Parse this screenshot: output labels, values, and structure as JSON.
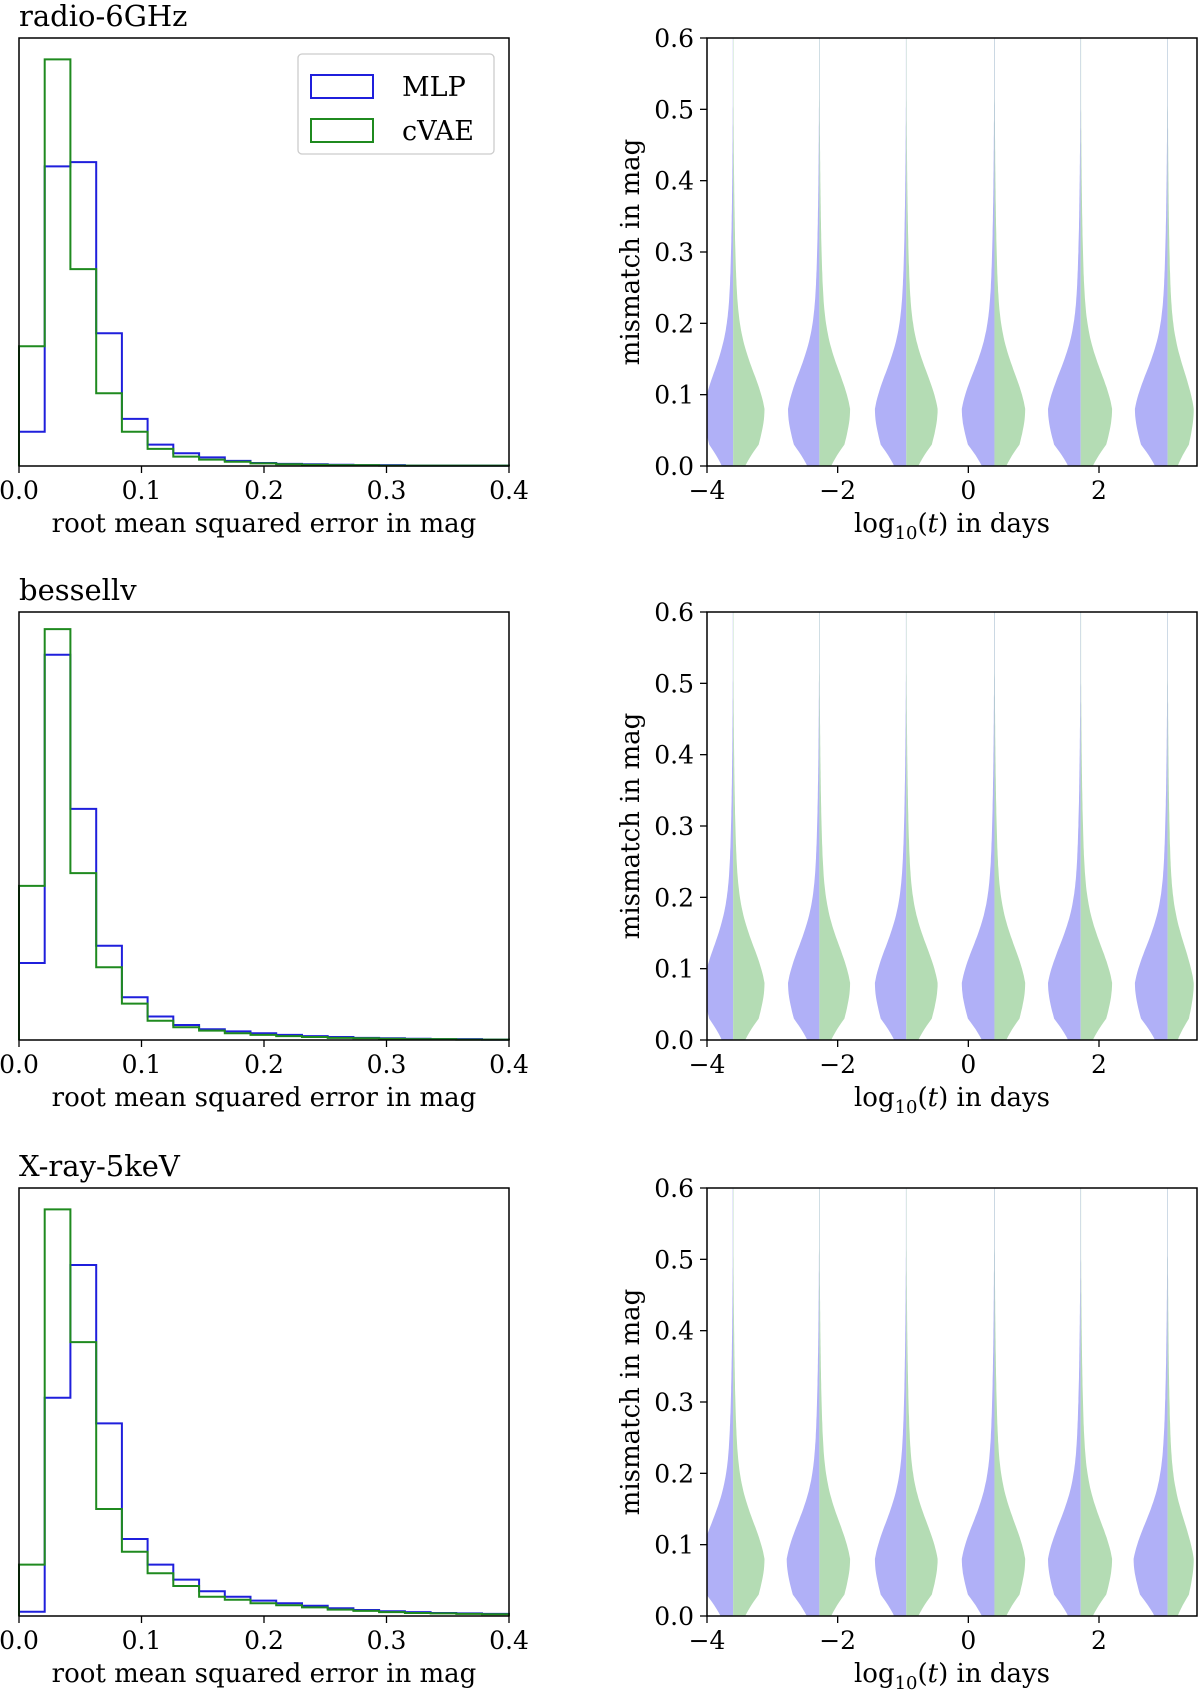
{
  "x_axis_labels": {
    "hist": "root mean squared error in mag",
    "violin_prefix": "log",
    "violin_sub": "10",
    "violin_mid": "(",
    "violin_var": "t",
    "violin_suffix": ") in days"
  },
  "y_axis_labels": {
    "violin": "mismatch in mag"
  },
  "legend": {
    "entries": [
      "MLP",
      "cVAE"
    ]
  },
  "colors": {
    "mlp_line": "#1f1fdc",
    "cvae_line": "#1f8a1f",
    "mlp_fill": "#b0b0f7",
    "cvae_fill": "#b4dcb4"
  },
  "chart_data": [
    {
      "type": "histogram-step",
      "title": "radio-6GHz",
      "xlabel": "root mean squared error in mag",
      "xlim": [
        0,
        0.4
      ],
      "xticks": [
        "0.0",
        "0.1",
        "0.2",
        "0.3",
        "0.4"
      ],
      "bin_edges": [
        0,
        0.021,
        0.042,
        0.063,
        0.084,
        0.105,
        0.126,
        0.147,
        0.168,
        0.189,
        0.21,
        0.231,
        0.252,
        0.273,
        0.294,
        0.315,
        0.336,
        0.357,
        0.378,
        0.4
      ],
      "ylim": [
        0,
        1
      ],
      "y_ticks_shown": false,
      "legend": "top-right",
      "series": [
        {
          "name": "MLP",
          "values": [
            0.08,
            0.7,
            0.71,
            0.31,
            0.11,
            0.05,
            0.03,
            0.02,
            0.012,
            0.007,
            0.005,
            0.004,
            0.003,
            0.002,
            0.002,
            0.001,
            0.001,
            0.001,
            0.001
          ]
        },
        {
          "name": "cVAE",
          "values": [
            0.28,
            0.95,
            0.46,
            0.17,
            0.08,
            0.04,
            0.022,
            0.015,
            0.01,
            0.006,
            0.004,
            0.003,
            0.002,
            0.002,
            0.001,
            0.001,
            0.001,
            0.001,
            0.001
          ]
        }
      ]
    },
    {
      "type": "violin",
      "title": "",
      "xlabel": "log10(t) in days",
      "ylabel": "mismatch in mag",
      "xlim": [
        -4,
        3.5
      ],
      "ylim": [
        0,
        0.6
      ],
      "xticks": [
        -4,
        -2,
        0,
        2
      ],
      "xtick_labels": [
        "−4",
        "−2",
        "0",
        "2"
      ],
      "yticks": [
        "0.0",
        "0.1",
        "0.2",
        "0.3",
        "0.4",
        "0.5",
        "0.6"
      ],
      "positions": [
        -3.6,
        -2.28,
        -0.95,
        0.4,
        1.72,
        3.05
      ],
      "halfwidths_mlp": [
        0.45,
        0.48,
        0.48,
        0.5,
        0.5,
        0.5
      ],
      "halfwidths_cvae": [
        0.48,
        0.47,
        0.48,
        0.47,
        0.48,
        0.4
      ]
    },
    {
      "type": "histogram-step",
      "title": "bessellv",
      "xlabel": "root mean squared error in mag",
      "xlim": [
        0,
        0.4
      ],
      "xticks": [
        "0.0",
        "0.1",
        "0.2",
        "0.3",
        "0.4"
      ],
      "bin_edges": [
        0,
        0.021,
        0.042,
        0.063,
        0.084,
        0.105,
        0.126,
        0.147,
        0.168,
        0.189,
        0.21,
        0.231,
        0.252,
        0.273,
        0.294,
        0.315,
        0.336,
        0.357,
        0.378,
        0.4
      ],
      "ylim": [
        0,
        1
      ],
      "y_ticks_shown": false,
      "series": [
        {
          "name": "MLP",
          "values": [
            0.18,
            0.9,
            0.54,
            0.22,
            0.1,
            0.055,
            0.035,
            0.025,
            0.02,
            0.016,
            0.012,
            0.009,
            0.007,
            0.005,
            0.004,
            0.003,
            0.002,
            0.002,
            0.001
          ]
        },
        {
          "name": "cVAE",
          "values": [
            0.36,
            0.96,
            0.39,
            0.17,
            0.085,
            0.045,
            0.03,
            0.022,
            0.016,
            0.012,
            0.009,
            0.007,
            0.005,
            0.004,
            0.003,
            0.002,
            0.002,
            0.001,
            0.001
          ]
        }
      ]
    },
    {
      "type": "violin",
      "title": "",
      "xlabel": "log10(t) in days",
      "ylabel": "mismatch in mag",
      "xlim": [
        -4,
        3.5
      ],
      "ylim": [
        0,
        0.6
      ],
      "xticks": [
        -4,
        -2,
        0,
        2
      ],
      "xtick_labels": [
        "−4",
        "−2",
        "0",
        "2"
      ],
      "yticks": [
        "0.0",
        "0.1",
        "0.2",
        "0.3",
        "0.4",
        "0.5",
        "0.6"
      ],
      "positions": [
        -3.6,
        -2.28,
        -0.95,
        0.4,
        1.72,
        3.05
      ],
      "halfwidths_mlp": [
        0.45,
        0.48,
        0.48,
        0.5,
        0.5,
        0.5
      ],
      "halfwidths_cvae": [
        0.48,
        0.47,
        0.48,
        0.47,
        0.48,
        0.4
      ]
    },
    {
      "type": "histogram-step",
      "title": "X-ray-5keV",
      "xlabel": "root mean squared error in mag",
      "xlim": [
        0,
        0.4
      ],
      "xticks": [
        "0.0",
        "0.1",
        "0.2",
        "0.3",
        "0.4"
      ],
      "bin_edges": [
        0,
        0.021,
        0.042,
        0.063,
        0.084,
        0.105,
        0.126,
        0.147,
        0.168,
        0.189,
        0.21,
        0.231,
        0.252,
        0.273,
        0.294,
        0.315,
        0.336,
        0.357,
        0.378,
        0.4
      ],
      "ylim": [
        0,
        1
      ],
      "y_ticks_shown": false,
      "series": [
        {
          "name": "MLP",
          "values": [
            0.01,
            0.51,
            0.82,
            0.45,
            0.18,
            0.12,
            0.085,
            0.058,
            0.045,
            0.036,
            0.03,
            0.024,
            0.018,
            0.014,
            0.011,
            0.009,
            0.007,
            0.006,
            0.005
          ]
        },
        {
          "name": "cVAE",
          "values": [
            0.12,
            0.95,
            0.64,
            0.25,
            0.15,
            0.1,
            0.07,
            0.045,
            0.038,
            0.03,
            0.025,
            0.02,
            0.015,
            0.012,
            0.009,
            0.007,
            0.006,
            0.005,
            0.004
          ]
        }
      ]
    },
    {
      "type": "violin",
      "title": "",
      "xlabel": "log10(t) in days",
      "ylabel": "mismatch in mag",
      "xlim": [
        -4,
        3.5
      ],
      "ylim": [
        0,
        0.6
      ],
      "xticks": [
        -4,
        -2,
        0,
        2
      ],
      "xtick_labels": [
        "−4",
        "−2",
        "0",
        "2"
      ],
      "yticks": [
        "0.0",
        "0.1",
        "0.2",
        "0.3",
        "0.4",
        "0.5",
        "0.6"
      ],
      "positions": [
        -3.6,
        -2.28,
        -0.95,
        0.4,
        1.72,
        3.05
      ],
      "halfwidths_mlp": [
        0.5,
        0.5,
        0.48,
        0.5,
        0.5,
        0.52
      ],
      "halfwidths_cvae": [
        0.48,
        0.47,
        0.48,
        0.47,
        0.48,
        0.4
      ]
    }
  ]
}
